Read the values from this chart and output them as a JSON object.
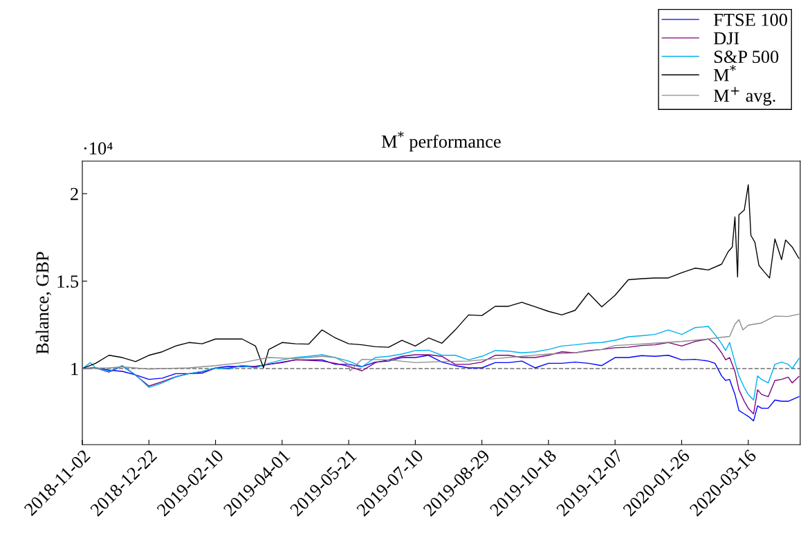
{
  "chart_data": {
    "type": "line",
    "title": "M$^{*}$ performance",
    "ylabel": "Balance, GBP",
    "annotations": [
      "·10⁴"
    ],
    "xlim": [
      "2018-11-02",
      "2020-04-24"
    ],
    "xticks": [
      "2018-11-02",
      "2018-12-22",
      "2019-02-10",
      "2019-04-01",
      "2019-05-21",
      "2019-07-10",
      "2019-08-29",
      "2019-10-18",
      "2019-12-07",
      "2020-01-26",
      "2020-03-16"
    ],
    "ylim": [
      0.565,
      2.186
    ],
    "yticks": [
      1,
      1.5,
      2
    ],
    "grid": false,
    "legend": "top right",
    "marker": "none",
    "line_style": "solid",
    "ref_lines": [
      {
        "axis": "y",
        "value": 1,
        "label": null,
        "color": "#707070",
        "line_style": "dashed"
      }
    ],
    "series": [
      {
        "name": "FTSE 100",
        "color": "#0000ff",
        "x": [
          "2018-11-02",
          "2018-11-12",
          "2018-11-22",
          "2018-12-02",
          "2018-12-12",
          "2018-12-22",
          "2019-01-01",
          "2019-01-11",
          "2019-01-21",
          "2019-01-31",
          "2019-02-10",
          "2019-02-20",
          "2019-03-02",
          "2019-03-12",
          "2019-03-22",
          "2019-04-01",
          "2019-04-11",
          "2019-04-21",
          "2019-05-01",
          "2019-05-11",
          "2019-05-21",
          "2019-05-31",
          "2019-06-10",
          "2019-06-20",
          "2019-06-30",
          "2019-07-10",
          "2019-07-20",
          "2019-07-30",
          "2019-08-09",
          "2019-08-19",
          "2019-08-29",
          "2019-09-08",
          "2019-09-18",
          "2019-09-28",
          "2019-10-08",
          "2019-10-18",
          "2019-10-28",
          "2019-11-07",
          "2019-11-17",
          "2019-11-27",
          "2019-12-07",
          "2019-12-17",
          "2019-12-27",
          "2020-01-06",
          "2020-01-16",
          "2020-01-26",
          "2020-02-05",
          "2020-02-15",
          "2020-02-20",
          "2020-02-25",
          "2020-02-28",
          "2020-03-02",
          "2020-03-06",
          "2020-03-09",
          "2020-03-13",
          "2020-03-16",
          "2020-03-20",
          "2020-03-23",
          "2020-03-26",
          "2020-03-31",
          "2020-04-05",
          "2020-04-10",
          "2020-04-15",
          "2020-04-23"
        ],
        "values": [
          1.0,
          1.004,
          0.991,
          0.984,
          0.964,
          0.938,
          0.945,
          0.971,
          0.971,
          0.974,
          1.004,
          1.013,
          1.011,
          1.013,
          1.024,
          1.034,
          1.05,
          1.05,
          1.05,
          1.024,
          1.024,
          1.011,
          1.037,
          1.043,
          1.063,
          1.063,
          1.076,
          1.037,
          1.017,
          1.004,
          1.004,
          1.034,
          1.034,
          1.043,
          1.004,
          1.03,
          1.03,
          1.037,
          1.03,
          1.017,
          1.063,
          1.063,
          1.074,
          1.07,
          1.076,
          1.05,
          1.053,
          1.043,
          1.03,
          0.958,
          0.932,
          0.938,
          0.852,
          0.76,
          0.741,
          0.727,
          0.701,
          0.787,
          0.773,
          0.773,
          0.82,
          0.813,
          0.813,
          0.839
        ]
      },
      {
        "name": "DJI",
        "color": "#800080",
        "x": [
          "2018-11-02",
          "2018-11-12",
          "2018-11-22",
          "2018-12-02",
          "2018-12-12",
          "2018-12-22",
          "2019-01-01",
          "2019-01-11",
          "2019-01-21",
          "2019-01-31",
          "2019-02-10",
          "2019-02-20",
          "2019-03-02",
          "2019-03-12",
          "2019-03-22",
          "2019-04-01",
          "2019-04-11",
          "2019-04-21",
          "2019-05-01",
          "2019-05-11",
          "2019-05-21",
          "2019-05-31",
          "2019-06-10",
          "2019-06-20",
          "2019-06-30",
          "2019-07-10",
          "2019-07-20",
          "2019-07-30",
          "2019-08-09",
          "2019-08-19",
          "2019-08-29",
          "2019-09-08",
          "2019-09-18",
          "2019-09-28",
          "2019-10-08",
          "2019-10-18",
          "2019-10-28",
          "2019-11-07",
          "2019-11-17",
          "2019-11-27",
          "2019-12-07",
          "2019-12-17",
          "2019-12-27",
          "2020-01-06",
          "2020-01-16",
          "2020-01-26",
          "2020-02-05",
          "2020-02-15",
          "2020-02-20",
          "2020-02-25",
          "2020-02-28",
          "2020-03-02",
          "2020-03-06",
          "2020-03-09",
          "2020-03-13",
          "2020-03-16",
          "2020-03-20",
          "2020-03-23",
          "2020-03-26",
          "2020-03-31",
          "2020-04-05",
          "2020-04-10",
          "2020-04-15",
          "2020-04-18",
          "2020-04-23"
        ],
        "values": [
          1.0,
          1.004,
          0.98,
          1.015,
          0.962,
          0.9,
          0.925,
          0.953,
          0.971,
          0.982,
          1.002,
          1.002,
          1.018,
          1.01,
          1.024,
          1.037,
          1.05,
          1.047,
          1.043,
          1.03,
          1.013,
          0.987,
          1.034,
          1.05,
          1.07,
          1.079,
          1.079,
          1.07,
          1.024,
          1.024,
          1.037,
          1.076,
          1.076,
          1.063,
          1.063,
          1.076,
          1.096,
          1.09,
          1.103,
          1.109,
          1.119,
          1.122,
          1.132,
          1.136,
          1.149,
          1.129,
          1.155,
          1.169,
          1.142,
          1.09,
          1.05,
          1.063,
          0.984,
          0.879,
          0.813,
          0.773,
          0.741,
          0.879,
          0.852,
          0.839,
          0.932,
          0.938,
          0.951,
          0.918,
          0.955
        ]
      },
      {
        "name": "S&P 500",
        "color": "#00b0f0",
        "x": [
          "2018-11-02",
          "2018-11-08",
          "2018-11-12",
          "2018-11-22",
          "2018-12-02",
          "2018-12-12",
          "2018-12-22",
          "2019-01-01",
          "2019-01-11",
          "2019-01-21",
          "2019-01-31",
          "2019-02-10",
          "2019-02-20",
          "2019-03-02",
          "2019-03-12",
          "2019-03-22",
          "2019-04-01",
          "2019-04-11",
          "2019-04-21",
          "2019-05-01",
          "2019-05-11",
          "2019-05-21",
          "2019-05-31",
          "2019-06-10",
          "2019-06-20",
          "2019-06-30",
          "2019-07-10",
          "2019-07-20",
          "2019-07-30",
          "2019-08-09",
          "2019-08-19",
          "2019-08-29",
          "2019-09-08",
          "2019-09-18",
          "2019-09-28",
          "2019-10-08",
          "2019-10-18",
          "2019-10-28",
          "2019-11-07",
          "2019-11-17",
          "2019-11-27",
          "2019-12-07",
          "2019-12-17",
          "2019-12-27",
          "2020-01-06",
          "2020-01-16",
          "2020-01-26",
          "2020-02-05",
          "2020-02-15",
          "2020-02-20",
          "2020-02-25",
          "2020-02-28",
          "2020-03-02",
          "2020-03-06",
          "2020-03-09",
          "2020-03-13",
          "2020-03-16",
          "2020-03-20",
          "2020-03-23",
          "2020-03-26",
          "2020-03-31",
          "2020-04-05",
          "2020-04-10",
          "2020-04-15",
          "2020-04-18",
          "2020-04-23"
        ],
        "values": [
          1.0,
          1.034,
          1.004,
          0.984,
          1.017,
          0.964,
          0.892,
          0.918,
          0.951,
          0.971,
          0.984,
          1.004,
          0.997,
          1.017,
          1.004,
          1.03,
          1.05,
          1.063,
          1.07,
          1.079,
          1.063,
          1.043,
          1.011,
          1.063,
          1.07,
          1.083,
          1.103,
          1.105,
          1.076,
          1.076,
          1.05,
          1.07,
          1.103,
          1.1,
          1.09,
          1.096,
          1.109,
          1.129,
          1.136,
          1.145,
          1.149,
          1.162,
          1.182,
          1.188,
          1.195,
          1.221,
          1.195,
          1.234,
          1.241,
          1.195,
          1.142,
          1.103,
          1.149,
          1.037,
          0.958,
          0.892,
          0.852,
          0.82,
          0.958,
          0.938,
          0.918,
          1.024,
          1.037,
          1.024,
          1.0,
          1.057
        ]
      },
      {
        "name": "M$^{*}$",
        "color": "#000000",
        "x": [
          "2018-11-02",
          "2018-11-12",
          "2018-11-22",
          "2018-12-02",
          "2018-12-12",
          "2018-12-22",
          "2019-01-01",
          "2019-01-11",
          "2019-01-21",
          "2019-01-31",
          "2019-02-10",
          "2019-02-20",
          "2019-03-02",
          "2019-03-12",
          "2019-03-18",
          "2019-03-22",
          "2019-04-01",
          "2019-04-11",
          "2019-04-21",
          "2019-05-01",
          "2019-05-11",
          "2019-05-21",
          "2019-05-31",
          "2019-06-10",
          "2019-06-20",
          "2019-06-30",
          "2019-07-10",
          "2019-07-20",
          "2019-07-30",
          "2019-08-09",
          "2019-08-19",
          "2019-08-29",
          "2019-09-08",
          "2019-09-18",
          "2019-09-28",
          "2019-10-08",
          "2019-10-18",
          "2019-10-28",
          "2019-11-07",
          "2019-11-17",
          "2019-11-27",
          "2019-12-07",
          "2019-12-17",
          "2019-12-27",
          "2020-01-06",
          "2020-01-16",
          "2020-01-26",
          "2020-02-05",
          "2020-02-15",
          "2020-02-25",
          "2020-03-01",
          "2020-03-04",
          "2020-03-06",
          "2020-03-08",
          "2020-03-09",
          "2020-03-13",
          "2020-03-16",
          "2020-03-18",
          "2020-03-21",
          "2020-03-24",
          "2020-03-28",
          "2020-04-01",
          "2020-04-05",
          "2020-04-10",
          "2020-04-13",
          "2020-04-18",
          "2020-04-23"
        ],
        "values": [
          1.0,
          1.03,
          1.076,
          1.063,
          1.04,
          1.076,
          1.096,
          1.129,
          1.149,
          1.142,
          1.169,
          1.169,
          1.169,
          1.129,
          1.005,
          1.109,
          1.149,
          1.142,
          1.14,
          1.221,
          1.175,
          1.142,
          1.136,
          1.125,
          1.122,
          1.162,
          1.129,
          1.175,
          1.145,
          1.221,
          1.307,
          1.303,
          1.356,
          1.356,
          1.379,
          1.353,
          1.327,
          1.307,
          1.333,
          1.432,
          1.353,
          1.419,
          1.508,
          1.514,
          1.518,
          1.518,
          1.548,
          1.574,
          1.564,
          1.597,
          1.669,
          1.695,
          1.867,
          1.524,
          1.88,
          1.906,
          2.051,
          1.761,
          1.722,
          1.59,
          1.553,
          1.518,
          1.741,
          1.623,
          1.735,
          1.695,
          1.63
        ]
      },
      {
        "name": "M$^{+}$ avg.",
        "color": "#8c8c8c",
        "x": [
          "2018-11-02",
          "2018-11-22",
          "2018-12-02",
          "2018-12-22",
          "2019-01-01",
          "2019-01-21",
          "2019-02-10",
          "2019-03-02",
          "2019-03-22",
          "2019-04-11",
          "2019-05-01",
          "2019-05-11",
          "2019-05-21",
          "2019-05-22",
          "2019-05-31",
          "2019-06-20",
          "2019-07-10",
          "2019-07-30",
          "2019-08-19",
          "2019-09-08",
          "2019-09-28",
          "2019-10-18",
          "2019-11-07",
          "2019-11-27",
          "2019-12-07",
          "2019-12-17",
          "2020-01-06",
          "2020-01-26",
          "2020-02-15",
          "2020-02-25",
          "2020-03-02",
          "2020-03-06",
          "2020-03-09",
          "2020-03-12",
          "2020-03-16",
          "2020-03-26",
          "2020-04-05",
          "2020-04-15",
          "2020-04-23"
        ],
        "values": [
          1.0,
          1.004,
          1.01,
          0.997,
          1.0,
          1.004,
          1.017,
          1.034,
          1.063,
          1.057,
          1.07,
          1.063,
          1.024,
          0.987,
          1.053,
          1.05,
          1.034,
          1.04,
          1.043,
          1.057,
          1.07,
          1.083,
          1.09,
          1.109,
          1.132,
          1.136,
          1.145,
          1.155,
          1.169,
          1.179,
          1.184,
          1.254,
          1.28,
          1.221,
          1.248,
          1.261,
          1.3,
          1.298,
          1.311
        ]
      }
    ]
  }
}
